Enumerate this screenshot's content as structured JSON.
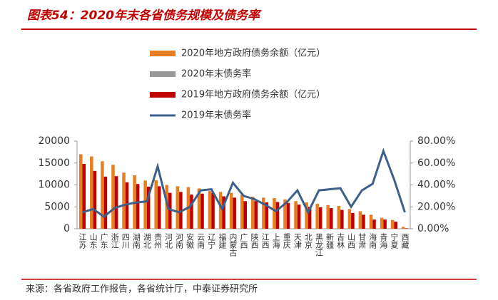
{
  "chart_data": {
    "type": "bar_line",
    "title": "图表54：2020年末各省债务规模及债务率",
    "source": "来源：各省政府工作报告，各省统计厅，中泰证券研究所",
    "categories": [
      "江苏",
      "山东",
      "广东",
      "浙江",
      "四川",
      "湖南",
      "湖北",
      "贵州",
      "河北",
      "河南",
      "安徽",
      "云南",
      "辽宁",
      "福建",
      "内蒙古",
      "广西",
      "陕西",
      "江西",
      "上海",
      "重庆",
      "天津",
      "北京",
      "黑龙江",
      "新疆",
      "吉林",
      "山西",
      "甘肃",
      "海南",
      "青海",
      "宁夏",
      "西藏"
    ],
    "series": [
      {
        "name": "2020年地方政府债务余额（亿元）",
        "color": "#e67e22",
        "kind": "bar",
        "values": [
          17000,
          16500,
          15400,
          14600,
          12800,
          12200,
          11000,
          11100,
          10000,
          9700,
          9500,
          9200,
          8600,
          8400,
          8200,
          7800,
          7300,
          7100,
          7000,
          6700,
          6300,
          6000,
          5700,
          5400,
          5200,
          4500,
          4000,
          3200,
          2500,
          2000,
          400
        ]
      },
      {
        "name": "2020年末债务率",
        "color": "#999999",
        "kind": "bar",
        "axis": "y2",
        "values": [
          null,
          null,
          null,
          null,
          null,
          null,
          null,
          null,
          null,
          null,
          null,
          null,
          null,
          null,
          null,
          null,
          null,
          null,
          null,
          null,
          null,
          null,
          null,
          null,
          null,
          null,
          null,
          null,
          null,
          null,
          null
        ]
      },
      {
        "name": "2019年地方政府债务余额（亿元）",
        "color": "#c00000",
        "kind": "bar",
        "values": [
          14800,
          13200,
          11900,
          12000,
          10600,
          10200,
          9600,
          9700,
          8200,
          8400,
          7800,
          8000,
          8200,
          7400,
          7100,
          6300,
          6300,
          6000,
          6100,
          5900,
          5500,
          5000,
          4900,
          4700,
          4300,
          3600,
          3200,
          2100,
          2100,
          1600,
          100
        ]
      },
      {
        "name": "2019年末债务率",
        "color": "#3d5f8a",
        "kind": "line",
        "axis": "y2",
        "values": [
          15,
          18,
          11,
          19,
          22,
          24,
          25,
          57,
          18,
          15,
          20,
          35,
          36,
          18,
          42,
          30,
          27,
          22,
          16,
          24,
          35,
          15,
          35,
          36,
          37,
          20,
          35,
          41,
          71,
          45,
          15
        ]
      }
    ],
    "ylim": [
      0,
      20000
    ],
    "yticks": [
      0,
      5000,
      10000,
      15000,
      20000
    ],
    "y2lim": [
      0,
      80
    ],
    "y2ticks": [
      {
        "value": 0,
        "label": "0.00%"
      },
      {
        "value": 20,
        "label": "20.00%"
      },
      {
        "value": 40,
        "label": "40.00%"
      },
      {
        "value": 60,
        "label": "60.00%"
      },
      {
        "value": 80,
        "label": "80.00%"
      }
    ]
  }
}
